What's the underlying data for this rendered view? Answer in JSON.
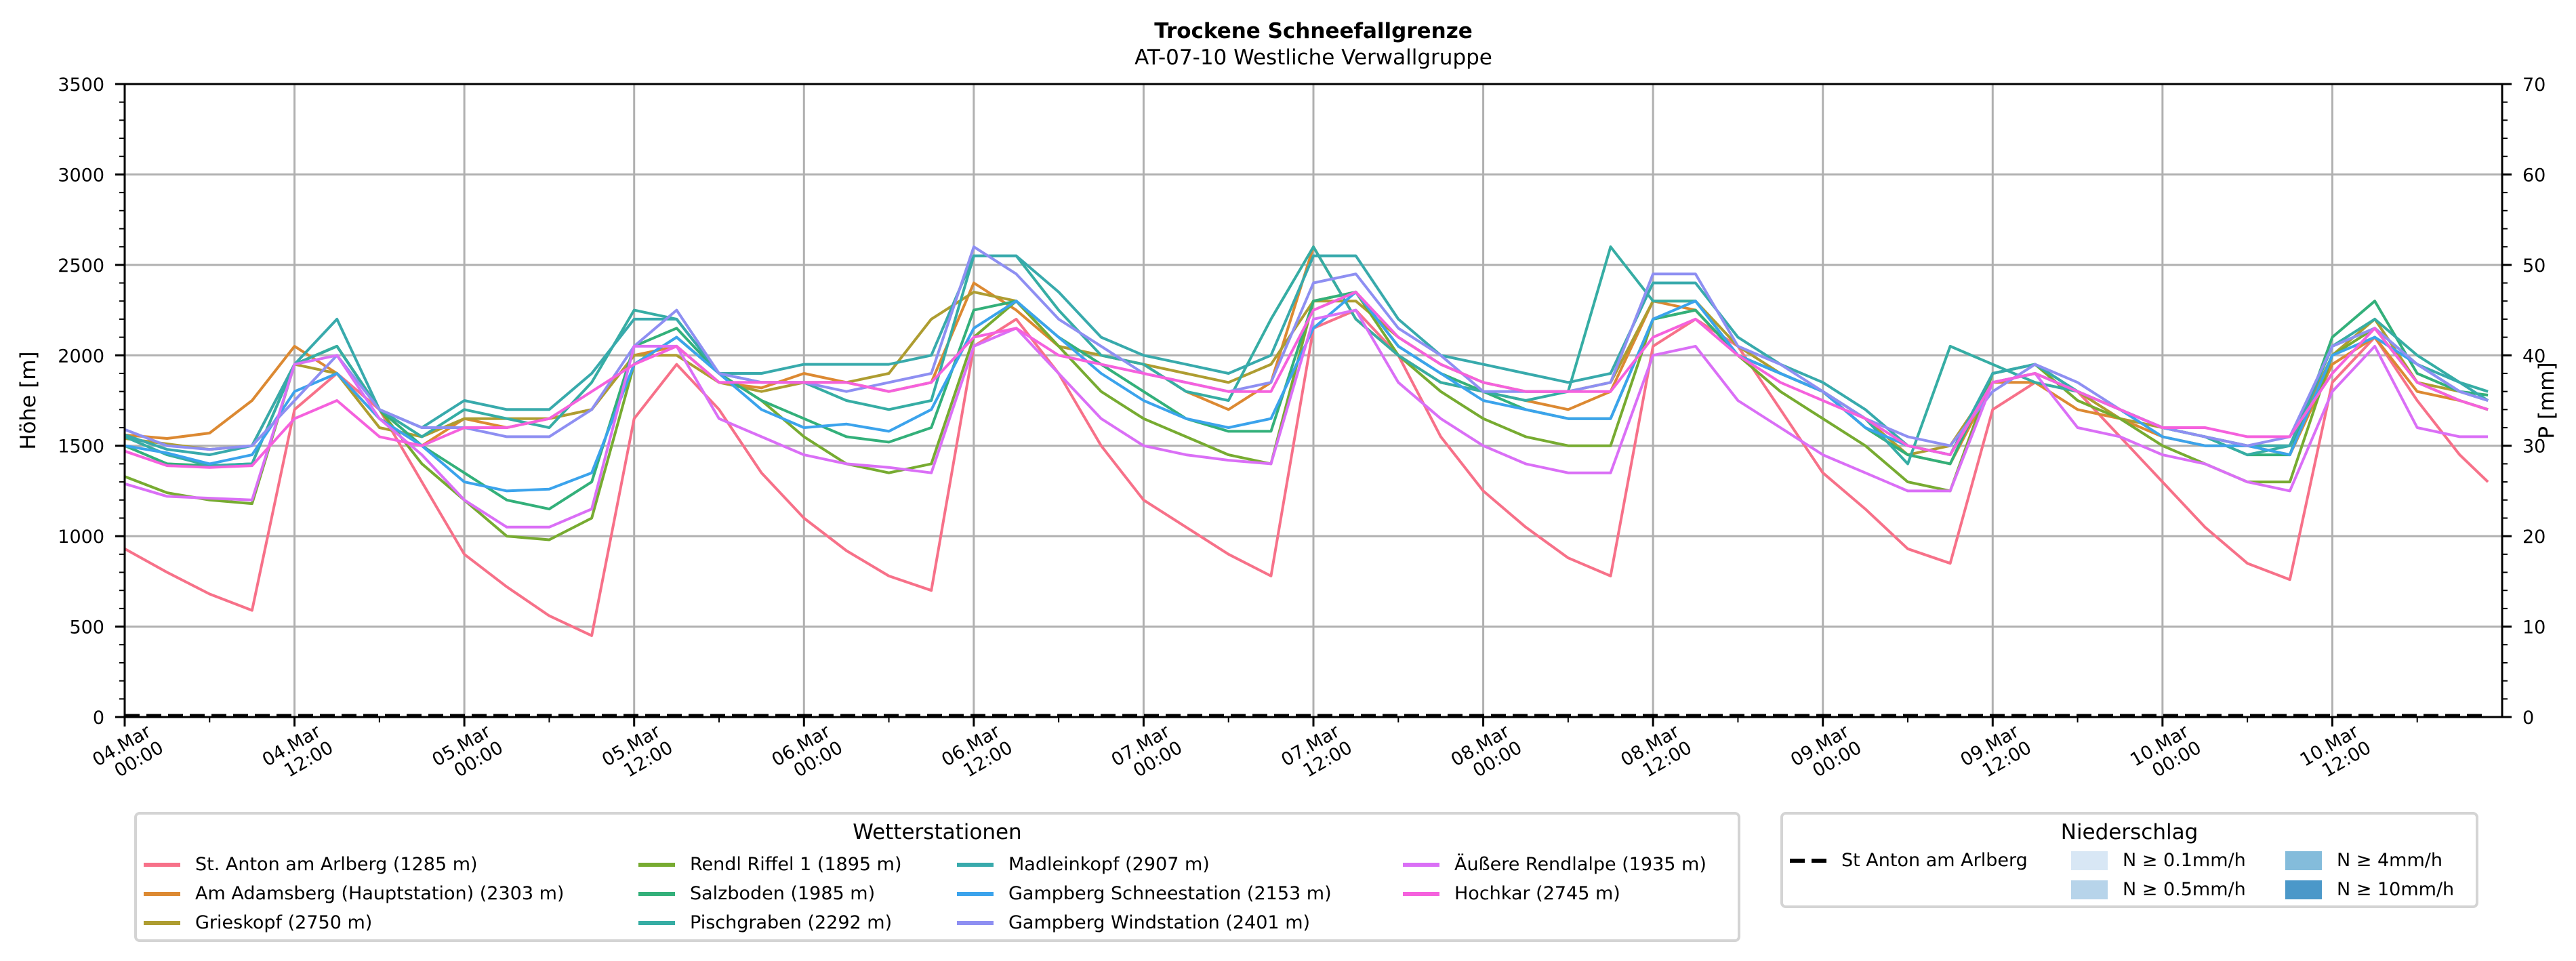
{
  "chart_data": {
    "type": "line",
    "title": "Trockene Schneefallgrenze",
    "subtitle": "AT-07-10 Westliche Verwallgruppe",
    "xlabel": "",
    "ylabel": "Höhe [m]",
    "ylabel_right": "P [mm]",
    "ylim": [
      0,
      3500
    ],
    "ylim_right": [
      0,
      70
    ],
    "yticks": [
      0,
      500,
      1000,
      1500,
      2000,
      2500,
      3000,
      3500
    ],
    "yticks_right": [
      0,
      10,
      20,
      30,
      40,
      50,
      60,
      70
    ],
    "grid": true,
    "x_unit": "hours since 04.Mar 00:00",
    "xlim": [
      0,
      168
    ],
    "xticks": [
      {
        "h": 0,
        "label": [
          "04.Mar",
          "00:00"
        ]
      },
      {
        "h": 12,
        "label": [
          "04.Mar",
          "12:00"
        ]
      },
      {
        "h": 24,
        "label": [
          "05.Mar",
          "00:00"
        ]
      },
      {
        "h": 36,
        "label": [
          "05.Mar",
          "12:00"
        ]
      },
      {
        "h": 48,
        "label": [
          "06.Mar",
          "00:00"
        ]
      },
      {
        "h": 60,
        "label": [
          "06.Mar",
          "12:00"
        ]
      },
      {
        "h": 72,
        "label": [
          "07.Mar",
          "00:00"
        ]
      },
      {
        "h": 84,
        "label": [
          "07.Mar",
          "12:00"
        ]
      },
      {
        "h": 96,
        "label": [
          "08.Mar",
          "00:00"
        ]
      },
      {
        "h": 108,
        "label": [
          "08.Mar",
          "12:00"
        ]
      },
      {
        "h": 120,
        "label": [
          "09.Mar",
          "00:00"
        ]
      },
      {
        "h": 132,
        "label": [
          "09.Mar",
          "12:00"
        ]
      },
      {
        "h": 144,
        "label": [
          "10.Mar",
          "00:00"
        ]
      },
      {
        "h": 156,
        "label": [
          "10.Mar",
          "12:00"
        ]
      }
    ],
    "x": [
      0,
      3,
      6,
      9,
      12,
      15,
      18,
      21,
      24,
      27,
      30,
      33,
      36,
      39,
      42,
      45,
      48,
      51,
      54,
      57,
      60,
      63,
      66,
      69,
      72,
      75,
      78,
      81,
      84,
      87,
      90,
      93,
      96,
      99,
      102,
      105,
      108,
      111,
      114,
      117,
      120,
      123,
      126,
      129,
      132,
      135,
      138,
      141,
      144,
      147,
      150,
      153,
      156,
      159,
      162,
      165,
      167
    ],
    "series": [
      {
        "name": "St. Anton am Arlberg (1285 m)",
        "color": "#f77189",
        "values": [
          930,
          800,
          680,
          590,
          1700,
          1900,
          1700,
          1300,
          900,
          720,
          560,
          450,
          1650,
          1950,
          1700,
          1350,
          1100,
          920,
          780,
          700,
          2050,
          2200,
          1900,
          1500,
          1200,
          1050,
          900,
          780,
          2150,
          2250,
          2000,
          1550,
          1250,
          1050,
          880,
          780,
          2050,
          2200,
          2050,
          1700,
          1350,
          1150,
          930,
          850,
          1700,
          1850,
          1800,
          1550,
          1300,
          1050,
          850,
          760,
          1850,
          2100,
          1750,
          1450,
          1300
        ]
      },
      {
        "name": "Am Adamsberg (Hauptstation) (2303 m)",
        "color": "#dc8932",
        "values": [
          1560,
          1540,
          1570,
          1750,
          2050,
          1900,
          1650,
          1500,
          1650,
          1600,
          1650,
          1700,
          2000,
          2050,
          1850,
          1820,
          1900,
          1850,
          1800,
          1850,
          2400,
          2250,
          2050,
          2000,
          1950,
          1800,
          1700,
          1850,
          2600,
          2200,
          2000,
          1850,
          1800,
          1750,
          1700,
          1800,
          2300,
          2250,
          2000,
          1900,
          1800,
          1600,
          1450,
          1400,
          1850,
          1850,
          1700,
          1650,
          1550,
          1500,
          1500,
          1450,
          1950,
          2100,
          1800,
          1750,
          1700
        ]
      },
      {
        "name": "Grieskopf (2750 m)",
        "color": "#ae9d31",
        "values": [
          1540,
          1510,
          1480,
          1500,
          1950,
          1900,
          1600,
          1550,
          1650,
          1650,
          1650,
          1700,
          2000,
          2000,
          1850,
          1800,
          1850,
          1850,
          1900,
          2200,
          2350,
          2300,
          2050,
          2000,
          1950,
          1900,
          1850,
          1950,
          2300,
          2300,
          2100,
          1950,
          1850,
          1800,
          1800,
          1850,
          2300,
          2300,
          2050,
          1900,
          1800,
          1650,
          1450,
          1500,
          1850,
          1900,
          1800,
          1650,
          1600,
          1550,
          1500,
          1500,
          2000,
          2200,
          1850,
          1800,
          1750
        ]
      },
      {
        "name": "Rendl Riffel 1 (1895 m)",
        "color": "#77ab31",
        "values": [
          1330,
          1240,
          1200,
          1180,
          1950,
          2050,
          1700,
          1400,
          1200,
          1000,
          980,
          1100,
          1950,
          2100,
          1900,
          1750,
          1550,
          1400,
          1350,
          1400,
          2100,
          2300,
          2050,
          1800,
          1650,
          1550,
          1450,
          1400,
          2300,
          2350,
          2000,
          1800,
          1650,
          1550,
          1500,
          1500,
          2200,
          2250,
          2000,
          1800,
          1650,
          1500,
          1300,
          1250,
          1900,
          1950,
          1750,
          1650,
          1500,
          1400,
          1300,
          1300,
          2000,
          2150,
          1850,
          1750,
          1700
        ]
      },
      {
        "name": "Salzboden (1985 m)",
        "color": "#33b07a",
        "values": [
          1500,
          1400,
          1390,
          1400,
          1950,
          2050,
          1700,
          1500,
          1350,
          1200,
          1150,
          1300,
          2050,
          2150,
          1900,
          1750,
          1650,
          1550,
          1520,
          1600,
          2250,
          2300,
          2100,
          1950,
          1800,
          1650,
          1580,
          1580,
          2300,
          2350,
          2050,
          1900,
          1800,
          1700,
          1650,
          1650,
          2200,
          2250,
          2000,
          1900,
          1800,
          1600,
          1450,
          1400,
          1900,
          1950,
          1800,
          1700,
          1600,
          1550,
          1450,
          1450,
          2100,
          2300,
          1900,
          1800,
          1780
        ]
      },
      {
        "name": "Pischgraben (2292 m)",
        "color": "#36ada4",
        "values": [
          1550,
          1450,
          1390,
          1400,
          1950,
          2050,
          1700,
          1550,
          1700,
          1650,
          1600,
          1850,
          2250,
          2200,
          1900,
          1850,
          1850,
          1750,
          1700,
          1750,
          2550,
          2550,
          2250,
          2000,
          1950,
          1800,
          1750,
          2200,
          2600,
          2200,
          2000,
          1850,
          1800,
          1750,
          1800,
          2600,
          2300,
          2300,
          2000,
          1900,
          1800,
          1650,
          1400,
          2050,
          1950,
          1850,
          1800,
          1700,
          1600,
          1550,
          1450,
          1500,
          2050,
          2200,
          2000,
          1850,
          1800
        ]
      },
      {
        "name": "Madleinkopf (2907 m)",
        "color": "#38aaac",
        "values": [
          1560,
          1480,
          1450,
          1500,
          1950,
          2200,
          1700,
          1600,
          1750,
          1700,
          1700,
          1900,
          2200,
          2200,
          1900,
          1900,
          1950,
          1950,
          1950,
          2000,
          2550,
          2550,
          2350,
          2100,
          2000,
          1950,
          1900,
          2000,
          2550,
          2550,
          2200,
          2000,
          1950,
          1900,
          1850,
          1900,
          2400,
          2400,
          2100,
          1950,
          1850,
          1700,
          1500,
          1450,
          1900,
          1950,
          1800,
          1700,
          1600,
          1550,
          1500,
          1500,
          2050,
          2150,
          1950,
          1850,
          1750
        ]
      },
      {
        "name": "Gampberg Schneestation (2153 m)",
        "color": "#3ba3ec",
        "values": [
          1500,
          1460,
          1400,
          1450,
          1800,
          1900,
          1650,
          1500,
          1300,
          1250,
          1260,
          1350,
          1950,
          2100,
          1900,
          1700,
          1600,
          1620,
          1580,
          1700,
          2150,
          2300,
          2100,
          1900,
          1750,
          1650,
          1600,
          1650,
          2150,
          2350,
          2050,
          1900,
          1750,
          1700,
          1650,
          1650,
          2200,
          2300,
          2000,
          1900,
          1800,
          1600,
          1500,
          1450,
          1850,
          1900,
          1800,
          1700,
          1550,
          1500,
          1500,
          1450,
          2000,
          2100,
          1950,
          1800,
          1750
        ]
      },
      {
        "name": "Gampberg Windstation (2401 m)",
        "color": "#8e8ff2",
        "values": [
          1590,
          1500,
          1480,
          1500,
          1750,
          2000,
          1700,
          1600,
          1600,
          1550,
          1550,
          1700,
          2050,
          2250,
          1900,
          1850,
          1850,
          1800,
          1850,
          1900,
          2600,
          2450,
          2200,
          2050,
          1900,
          1850,
          1800,
          1850,
          2400,
          2450,
          2150,
          2000,
          1800,
          1800,
          1800,
          1850,
          2450,
          2450,
          2050,
          1950,
          1800,
          1650,
          1550,
          1500,
          1800,
          1950,
          1850,
          1700,
          1600,
          1550,
          1500,
          1550,
          2050,
          2150,
          1950,
          1800,
          1750
        ]
      },
      {
        "name": "Äußere Rendlalpe (1935 m)",
        "color": "#da6ff6",
        "values": [
          1290,
          1220,
          1210,
          1200,
          1950,
          2000,
          1650,
          1450,
          1200,
          1050,
          1050,
          1150,
          2050,
          2050,
          1650,
          1550,
          1450,
          1400,
          1380,
          1350,
          2050,
          2150,
          1900,
          1650,
          1500,
          1450,
          1420,
          1400,
          2200,
          2250,
          1850,
          1650,
          1500,
          1400,
          1350,
          1350,
          2000,
          2050,
          1750,
          1600,
          1450,
          1350,
          1250,
          1250,
          1850,
          1900,
          1600,
          1550,
          1450,
          1400,
          1300,
          1250,
          1800,
          2050,
          1600,
          1550,
          1550
        ]
      },
      {
        "name": "Hochkar (2745 m)",
        "color": "#f561dd",
        "values": [
          1470,
          1390,
          1380,
          1390,
          1650,
          1750,
          1550,
          1500,
          1600,
          1600,
          1650,
          1800,
          1950,
          2050,
          1850,
          1850,
          1850,
          1850,
          1800,
          1850,
          2100,
          2150,
          2000,
          1950,
          1900,
          1850,
          1800,
          1800,
          2250,
          2350,
          2100,
          1950,
          1850,
          1800,
          1800,
          1800,
          2100,
          2200,
          2000,
          1850,
          1750,
          1650,
          1500,
          1450,
          1850,
          1900,
          1800,
          1700,
          1600,
          1600,
          1550,
          1550,
          1900,
          2150,
          1850,
          1750,
          1700
        ]
      }
    ],
    "precipitation": {
      "name": "St Anton am Arlberg",
      "style": "dashed",
      "color": "#000000",
      "values_mm": [
        0,
        0,
        0,
        0,
        0,
        0,
        0,
        0,
        0,
        0,
        0,
        0,
        0,
        0,
        0,
        0,
        0,
        0,
        0,
        0,
        0,
        0,
        0,
        0,
        0,
        0,
        0,
        0,
        0,
        0,
        0,
        0,
        0,
        0,
        0,
        0,
        0,
        0,
        0,
        0,
        0,
        0,
        0,
        0,
        0,
        0,
        0,
        0,
        0,
        0,
        0,
        0,
        0,
        0,
        0,
        0,
        0
      ]
    },
    "legend_stations": {
      "title": "Wetterstationen",
      "placement": "below-left"
    },
    "legend_precip": {
      "title": "Niederschlag",
      "placement": "below-right",
      "line_label": "St Anton am Arlberg",
      "classes": [
        {
          "label": "N ≥ 0.1mm/h",
          "color": "#d8e7f5"
        },
        {
          "label": "N ≥ 0.5mm/h",
          "color": "#b7d4ea"
        },
        {
          "label": "N ≥ 4mm/h",
          "color": "#84bcdb"
        },
        {
          "label": "N ≥ 10mm/h",
          "color": "#4b98c9"
        }
      ]
    }
  }
}
